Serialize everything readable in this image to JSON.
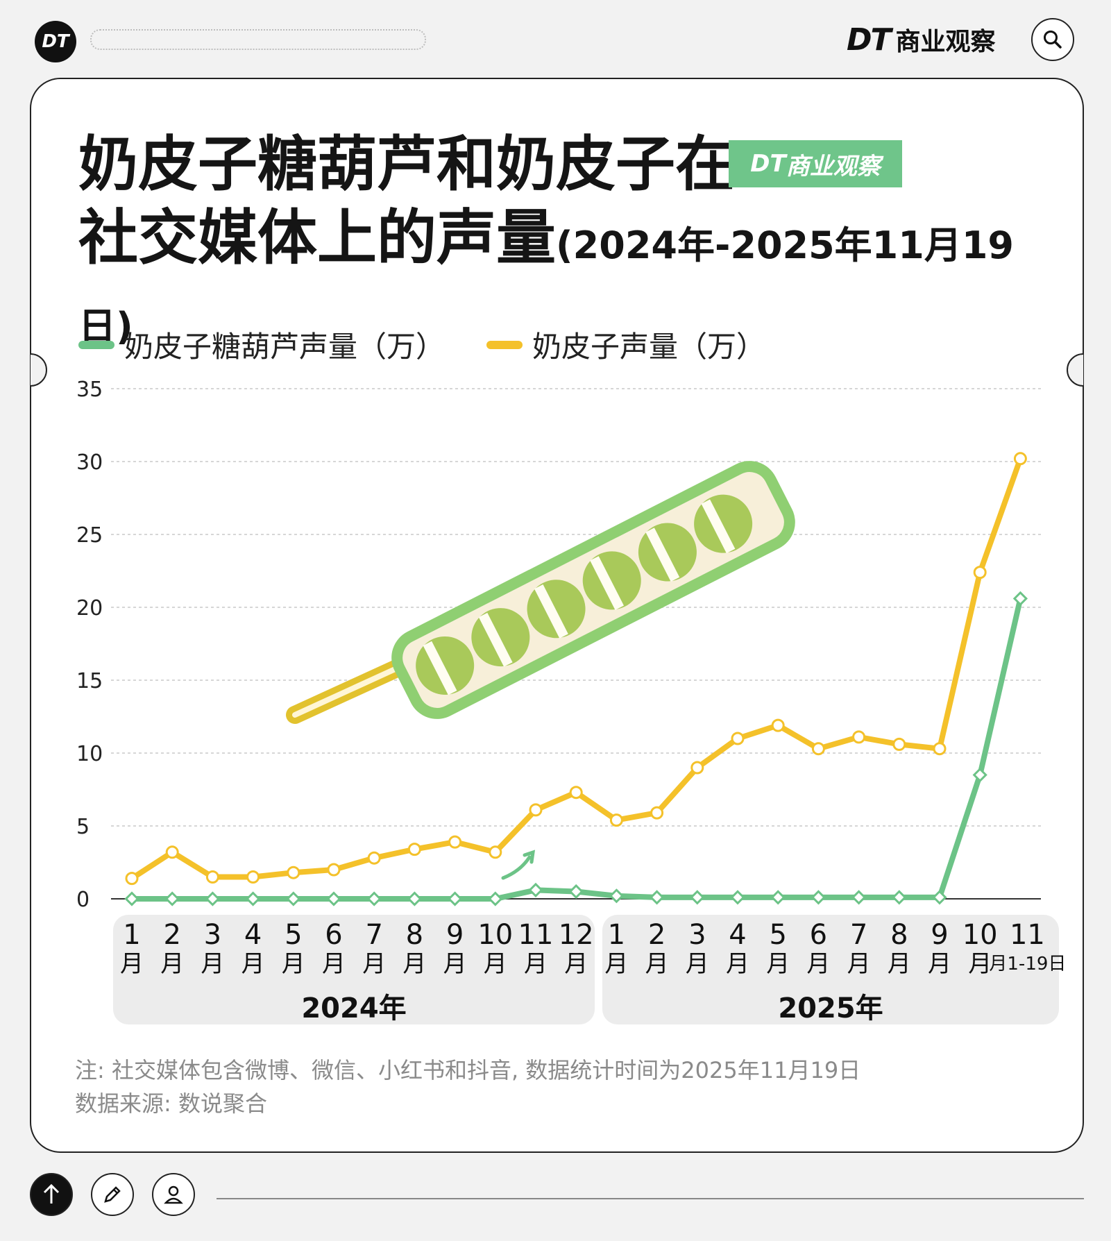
{
  "header": {
    "logo_text": "DT",
    "brand_dt": "DT",
    "brand_name": "商业观察"
  },
  "title": {
    "line1": "奶皮子糖葫芦和奶皮子在",
    "line2": "社交媒体上的声量",
    "line2_sub": "(2024年-2025年11月19日)",
    "badge_dt": "DT",
    "badge_name": "商业观察"
  },
  "chart_data": {
    "type": "line",
    "categories": [
      "1月",
      "2月",
      "3月",
      "4月",
      "5月",
      "6月",
      "7月",
      "8月",
      "9月",
      "10月",
      "11月",
      "12月",
      "1月",
      "2月",
      "3月",
      "4月",
      "5月",
      "6月",
      "7月",
      "8月",
      "9月",
      "10月",
      "11月1-19日"
    ],
    "year_groups": [
      {
        "label": "2024年",
        "start": 0,
        "end": 11
      },
      {
        "label": "2025年",
        "start": 12,
        "end": 22
      }
    ],
    "series": [
      {
        "name": "奶皮子糖葫芦声量（万）",
        "color": "#6cc387",
        "values": [
          0,
          0,
          0,
          0,
          0,
          0,
          0,
          0,
          0,
          0,
          0.6,
          0.5,
          0.2,
          0.1,
          0.1,
          0.1,
          0.1,
          0.1,
          0.1,
          0.1,
          0.1,
          8.5,
          20.6
        ]
      },
      {
        "name": "奶皮子声量（万）",
        "color": "#f4c12a",
        "values": [
          1.4,
          3.2,
          1.5,
          1.5,
          1.8,
          2.0,
          2.8,
          3.4,
          3.9,
          3.2,
          6.1,
          7.3,
          5.4,
          5.9,
          9.0,
          11.0,
          11.9,
          10.3,
          11.1,
          10.6,
          10.3,
          22.4,
          30.2
        ]
      }
    ],
    "yticks": [
      0,
      5,
      10,
      15,
      20,
      25,
      30,
      35
    ],
    "ylim": [
      0,
      35
    ],
    "grid": true,
    "legend_position": "top-left"
  },
  "notes": {
    "line1": "注: 社交媒体包含微博、微信、小红书和抖音, 数据统计时间为2025年11月19日",
    "line2": "数据来源: 数说聚合"
  },
  "icons": {
    "search": "search-icon",
    "up": "arrow-up-icon",
    "edit": "pencil-icon",
    "user": "user-icon"
  }
}
